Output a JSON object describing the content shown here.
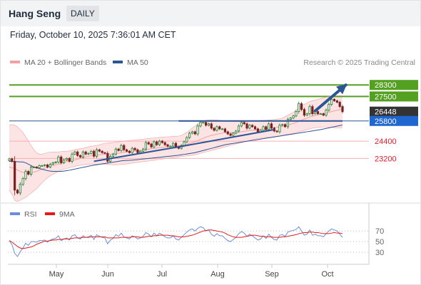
{
  "header": {
    "instrument": "Hang Seng",
    "period": "DAILY",
    "datetime": "Friday, October 10, 2025 7:36:01 AM CET"
  },
  "colors": {
    "candle_up": "#1e7a2c",
    "candle_down": "#7b1f1f",
    "ma20_bollinger": "#f2a0a0",
    "band_fill": "#fde4e4",
    "ma50": "#2b5595",
    "resistance": "#54a021",
    "support": "#f5b0b5",
    "pivot": "#2b5595",
    "rsi": "#6a8fd8",
    "rsi_ma": "#e31b1b"
  },
  "chart_data": [
    {
      "type": "candlestick",
      "title": "",
      "x_ticks": [
        "May",
        "Jun",
        "Jul",
        "Aug",
        "Sep",
        "Oct"
      ],
      "legend": [
        {
          "name": "MA 20 + Bollinger Bands",
          "color": "#f2a0a0"
        },
        {
          "name": "MA 50",
          "color": "#2b5595"
        }
      ],
      "copyright": "Research © 2025 Trading Central",
      "ylim": [
        20300,
        29200
      ],
      "levels": [
        {
          "value": 28300,
          "label": "28300",
          "kind": "resistance"
        },
        {
          "value": 27500,
          "label": "27500",
          "kind": "resistance"
        },
        {
          "value": 26448,
          "label": "26448",
          "kind": "last"
        },
        {
          "value": 25800,
          "label": "25800",
          "kind": "pivot"
        },
        {
          "value": 24400,
          "label": "24400",
          "kind": "support"
        },
        {
          "value": 23200,
          "label": "23200",
          "kind": "support"
        }
      ],
      "close": [
        23170,
        23000,
        21000,
        20800,
        21400,
        21800,
        22300,
        22100,
        22600,
        22600,
        22550,
        22700,
        22700,
        22750,
        22600,
        22800,
        22900,
        22950,
        23300,
        22900,
        23100,
        23200,
        23000,
        23500,
        23650,
        23400,
        23300,
        23650,
        23500,
        23550,
        23700,
        23350,
        23800,
        23700,
        23600,
        23550,
        23000,
        23350,
        23500,
        23850,
        23750,
        24100,
        23800,
        23700,
        23600,
        23900,
        23800,
        23600,
        23700,
        23850,
        24300,
        24200,
        24000,
        24350,
        24150,
        24400,
        24300,
        24150,
        24050,
        24050,
        24250,
        24000,
        23900,
        24100,
        24350,
        24650,
        24950,
        25050,
        24900,
        25450,
        25700,
        25700,
        25500,
        25600,
        25300,
        25150,
        25400,
        25250,
        25250,
        25050,
        24900,
        24800,
        24950,
        25100,
        25450,
        25700,
        25600,
        25300,
        25500,
        25400,
        25250,
        25050,
        25150,
        25400,
        25200,
        25600,
        25300,
        25100,
        25050,
        25500,
        25550,
        25400,
        25900,
        26000,
        26150,
        26450,
        27000,
        26600,
        26200,
        26300,
        26800,
        26300,
        26450,
        26300,
        26300,
        26200,
        26550,
        26950,
        27300,
        27200,
        27100,
        26800,
        26448
      ],
      "ma20": [
        22600,
        22550,
        22500,
        22400,
        22300,
        22230,
        22200,
        22200,
        22220,
        22250,
        22300,
        22380,
        22460,
        22520,
        22580,
        22640,
        22700,
        22750,
        22800,
        22860,
        22920,
        22980,
        23020,
        23060,
        23100,
        23150,
        23200,
        23250,
        23300,
        23350,
        23380,
        23400,
        23430,
        23460,
        23480,
        23500,
        23500,
        23500,
        23520,
        23540,
        23560,
        23600,
        23630,
        23650,
        23670,
        23690,
        23700,
        23720,
        23740,
        23760,
        23800,
        23840,
        23870,
        23900,
        23920,
        23950,
        23970,
        23990,
        24000,
        24020,
        24050,
        24070,
        24080,
        24100,
        24130,
        24180,
        24230,
        24300,
        24360,
        24440,
        24520,
        24600,
        24680,
        24740,
        24800,
        24840,
        24880,
        24920,
        24960,
        25000,
        25000,
        25000,
        25000,
        25000,
        25020,
        25050,
        25080,
        25100,
        25130,
        25160,
        25180,
        25200,
        25230,
        25250,
        25280,
        25300,
        25320,
        25340,
        25360,
        25390,
        25420,
        25460,
        25510,
        25570,
        25630,
        25700,
        25780,
        25860,
        25930,
        26000,
        26070,
        26130,
        26180,
        26230,
        26270,
        26300,
        26350,
        26400,
        26450,
        26500,
        26540,
        26580,
        26600
      ],
      "bb_upper": [
        25500,
        25550,
        25500,
        25400,
        25200,
        25000,
        24700,
        24400,
        24100,
        23800,
        23600,
        23500,
        23500,
        23550,
        23600,
        23650,
        23650,
        23650,
        23650,
        23670,
        23700,
        23700,
        23720,
        23750,
        23800,
        23850,
        23870,
        23900,
        23950,
        24000,
        24050,
        24070,
        24100,
        24150,
        24200,
        24250,
        24270,
        24290,
        24300,
        24330,
        24350,
        24380,
        24400,
        24420,
        24440,
        24460,
        24480,
        24500,
        24520,
        24540,
        24560,
        24580,
        24600,
        24620,
        24640,
        24660,
        24680,
        24690,
        24700,
        24710,
        24730,
        24740,
        24750,
        24800,
        24900,
        25000,
        25150,
        25300,
        25450,
        25600,
        25750,
        25800,
        25850,
        25870,
        25880,
        25880,
        25870,
        25850,
        25830,
        25810,
        25800,
        25780,
        25760,
        25760,
        25760,
        25760,
        25770,
        25780,
        25790,
        25800,
        25810,
        25820,
        25830,
        25840,
        25850,
        25870,
        25880,
        25900,
        25920,
        25950,
        26000,
        26100,
        26200,
        26300,
        26400,
        26550,
        26700,
        26850,
        26950,
        27050,
        27150,
        27200,
        27250,
        27300,
        27350,
        27400,
        27450,
        27500,
        27550,
        27550,
        27550,
        27550,
        27550
      ],
      "bb_lower": [
        21000,
        20700,
        20300,
        20200,
        20300,
        20400,
        20500,
        20650,
        20800,
        20950,
        21100,
        21300,
        21500,
        21700,
        21850,
        22000,
        22100,
        22200,
        22300,
        22400,
        22450,
        22500,
        22550,
        22600,
        22650,
        22700,
        22720,
        22750,
        22780,
        22800,
        22800,
        22800,
        22800,
        22800,
        22800,
        22790,
        22780,
        22770,
        22760,
        22750,
        22760,
        22780,
        22800,
        22820,
        22850,
        22880,
        22900,
        22930,
        22950,
        22980,
        23000,
        23020,
        23050,
        23070,
        23100,
        23130,
        23150,
        23180,
        23200,
        23220,
        23250,
        23270,
        23300,
        23330,
        23350,
        23370,
        23400,
        23420,
        23450,
        23500,
        23550,
        23600,
        23650,
        23700,
        23750,
        23800,
        23850,
        23900,
        23950,
        24000,
        24050,
        24100,
        24150,
        24200,
        24250,
        24300,
        24350,
        24400,
        24450,
        24500,
        24550,
        24580,
        24600,
        24620,
        24650,
        24670,
        24700,
        24720,
        24750,
        24770,
        24800,
        24850,
        24880,
        24900,
        24950,
        25000,
        25050,
        25100,
        25150,
        25200,
        25250,
        25300,
        25330,
        25350,
        25370,
        25380,
        25380,
        25370,
        25350,
        25340,
        25330,
        25330,
        25340
      ],
      "ma50": [
        23000,
        22990,
        22980,
        22970,
        22960,
        22950,
        22900,
        22800,
        22700,
        22600,
        22550,
        22500,
        22450,
        22400,
        22350,
        22320,
        22300,
        22300,
        22300,
        22300,
        22320,
        22350,
        22380,
        22420,
        22460,
        22500,
        22540,
        22580,
        22620,
        22660,
        22700,
        22730,
        22760,
        22790,
        22820,
        22850,
        22880,
        22910,
        22940,
        22970,
        23000,
        23030,
        23050,
        23060,
        23070,
        23080,
        23100,
        23120,
        23140,
        23160,
        23180,
        23200,
        23220,
        23240,
        23260,
        23280,
        23300,
        23320,
        23340,
        23360,
        23380,
        23400,
        23420,
        23450,
        23480,
        23510,
        23540,
        23570,
        23600,
        23650,
        23700,
        23750,
        23800,
        23850,
        23900,
        23950,
        24000,
        24050,
        24100,
        24150,
        24180,
        24210,
        24240,
        24270,
        24300,
        24330,
        24360,
        24390,
        24420,
        24450,
        24480,
        24510,
        24540,
        24570,
        24600,
        24630,
        24660,
        24690,
        24720,
        24750,
        24780,
        24810,
        24840,
        24870,
        24900,
        24930,
        24960,
        24990,
        25020,
        25050,
        25080,
        25110,
        25140,
        25170,
        25200,
        25240,
        25280,
        25320,
        25360,
        25400,
        25440,
        25480,
        25520
      ],
      "trendlines": [
        {
          "from": [
            31,
            23000
          ],
          "to": [
            62,
            24000
          ]
        },
        {
          "from": [
            62,
            24000
          ],
          "to": [
            97,
            25200
          ]
        },
        {
          "from": [
            62,
            25800
          ],
          "to": [
            114,
            25800
          ]
        },
        {
          "from": [
            114,
            25800
          ],
          "to": [
            122,
            25800
          ]
        }
      ],
      "forecast_arrow": {
        "from": [
          112,
          26500
        ],
        "to": [
          118,
          28300
        ]
      }
    },
    {
      "type": "line",
      "title": "",
      "legend": [
        {
          "name": "RSI",
          "color": "#6a8fd8"
        },
        {
          "name": "9MA",
          "color": "#e31b1b"
        }
      ],
      "y_ticks": [
        "70",
        "50",
        "30"
      ],
      "ylim": [
        10,
        85
      ],
      "rsi": [
        52,
        44,
        28,
        22,
        31,
        38,
        47,
        43,
        50,
        50,
        49,
        52,
        52,
        53,
        49,
        53,
        55,
        56,
        61,
        52,
        55,
        57,
        53,
        61,
        63,
        57,
        55,
        61,
        58,
        59,
        62,
        54,
        63,
        60,
        58,
        57,
        46,
        53,
        56,
        63,
        60,
        66,
        59,
        57,
        55,
        61,
        59,
        55,
        57,
        60,
        67,
        64,
        59,
        66,
        61,
        66,
        63,
        59,
        57,
        57,
        61,
        55,
        53,
        58,
        63,
        68,
        72,
        74,
        70,
        75,
        78,
        76,
        70,
        72,
        64,
        60,
        65,
        61,
        61,
        56,
        52,
        50,
        54,
        58,
        65,
        69,
        66,
        60,
        64,
        61,
        57,
        53,
        55,
        61,
        56,
        64,
        58,
        54,
        53,
        62,
        63,
        60,
        68,
        70,
        71,
        73,
        78,
        70,
        62,
        64,
        72,
        62,
        64,
        61,
        61,
        59,
        65,
        70,
        74,
        72,
        70,
        64,
        58
      ],
      "rsi_ma": [
        52,
        49,
        45,
        41,
        38,
        37,
        38,
        39,
        40,
        42,
        45,
        47,
        49,
        51,
        51,
        52,
        53,
        53,
        54,
        54,
        55,
        55,
        55,
        56,
        57,
        57,
        57,
        58,
        58,
        58,
        59,
        59,
        59,
        59,
        59,
        59,
        57,
        57,
        57,
        57,
        57,
        58,
        58,
        58,
        58,
        59,
        59,
        59,
        58,
        58,
        59,
        60,
        60,
        61,
        61,
        62,
        62,
        62,
        62,
        61,
        61,
        60,
        59,
        59,
        59,
        60,
        61,
        62,
        64,
        66,
        68,
        70,
        71,
        72,
        72,
        71,
        70,
        69,
        68,
        66,
        63,
        61,
        59,
        58,
        58,
        58,
        59,
        60,
        61,
        62,
        62,
        61,
        60,
        60,
        59,
        59,
        59,
        58,
        58,
        58,
        59,
        59,
        60,
        61,
        62,
        63,
        65,
        66,
        67,
        67,
        68,
        68,
        67,
        67,
        66,
        65,
        65,
        65,
        66,
        67,
        66,
        66,
        65
      ]
    }
  ]
}
